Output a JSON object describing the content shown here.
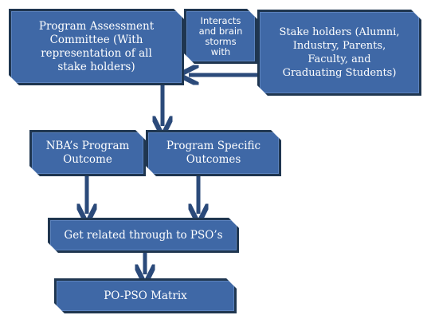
{
  "diagram": {
    "committee": "Program Assessment\nCommittee (With\nrepresentation  of all\nstake holders)",
    "interacts": "Interacts\nand brain\nstorms\nwith",
    "stakeholders": "Stake holders (Alumni,\nIndustry, Parents,\nFaculty, and\nGraduating Students)",
    "nba_outcome": "NBA’s Program\nOutcome",
    "pso": "Program Specific\nOutcomes",
    "related": "Get related through to PSO’s",
    "matrix": "PO-PSO Matrix"
  },
  "colors": {
    "box_fill": "#3f68a6",
    "box_border": "#1f3650",
    "arrow": "#2b4a7a"
  }
}
